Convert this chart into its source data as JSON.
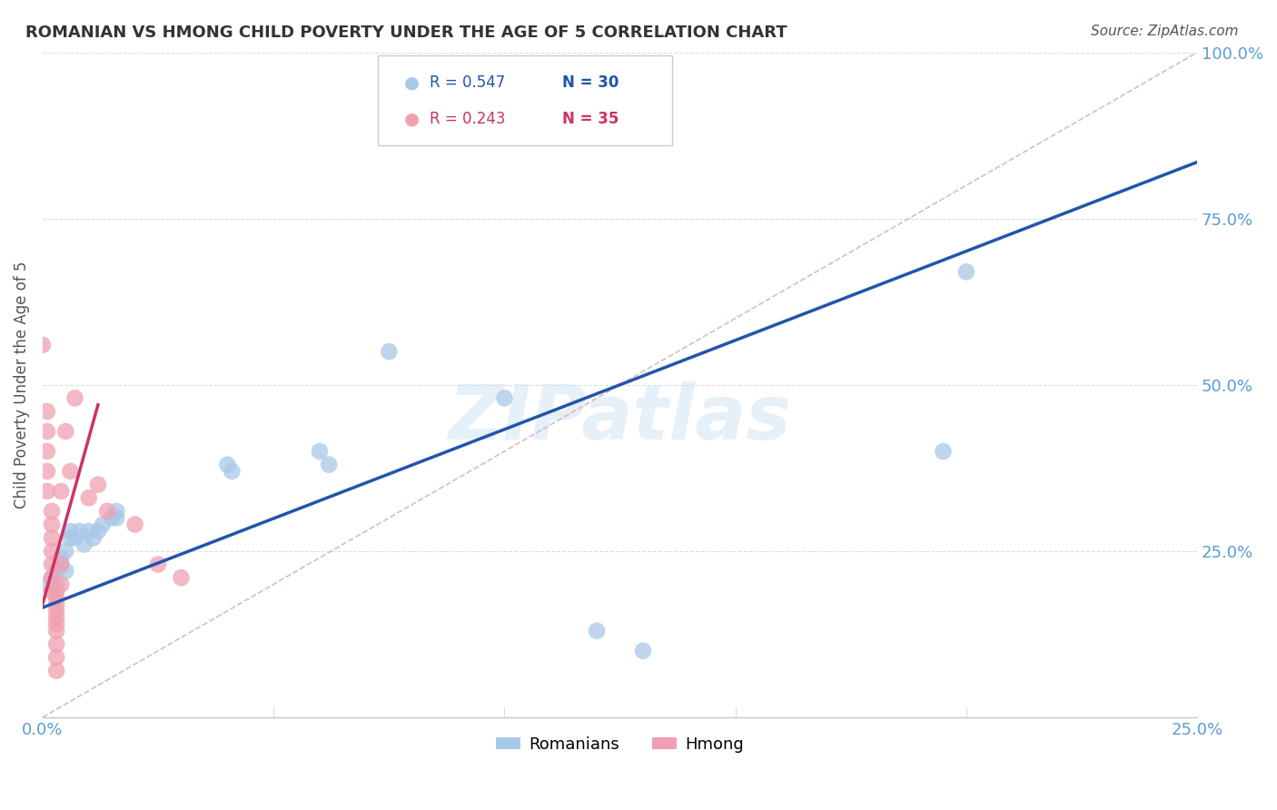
{
  "title": "ROMANIAN VS HMONG CHILD POVERTY UNDER THE AGE OF 5 CORRELATION CHART",
  "source": "Source: ZipAtlas.com",
  "tick_color": "#5b9bd5",
  "ylabel": "Child Poverty Under the Age of 5",
  "xlim": [
    0.0,
    0.25
  ],
  "ylim": [
    0.0,
    1.0
  ],
  "xticks": [
    0.0,
    0.05,
    0.1,
    0.15,
    0.2,
    0.25
  ],
  "yticks": [
    0.0,
    0.25,
    0.5,
    0.75,
    1.0
  ],
  "xtick_labels_show": [
    "0.0%",
    "",
    "",
    "",
    "",
    "25.0%"
  ],
  "ytick_labels": [
    "",
    "25.0%",
    "50.0%",
    "75.0%",
    "100.0%"
  ],
  "grid_color": "#dddddd",
  "background_color": "#ffffff",
  "watermark": "ZIPatlas",
  "legend_R1": "R = 0.547",
  "legend_N1": "N = 30",
  "legend_R2": "R = 0.243",
  "legend_N2": "N = 35",
  "romanian_color": "#a8c8e8",
  "hmong_color": "#f0a0b0",
  "romanian_line_color": "#2255aa",
  "hmong_line_color": "#cc3366",
  "diagonal_color": "#ddbbbb",
  "romanian_scatter": [
    [
      0.001,
      0.2
    ],
    [
      0.002,
      0.21
    ],
    [
      0.003,
      0.22
    ],
    [
      0.003,
      0.2
    ],
    [
      0.004,
      0.23
    ],
    [
      0.004,
      0.24
    ],
    [
      0.005,
      0.25
    ],
    [
      0.005,
      0.22
    ],
    [
      0.006,
      0.27
    ],
    [
      0.006,
      0.28
    ],
    [
      0.007,
      0.27
    ],
    [
      0.008,
      0.28
    ],
    [
      0.009,
      0.26
    ],
    [
      0.01,
      0.28
    ],
    [
      0.011,
      0.27
    ],
    [
      0.012,
      0.28
    ],
    [
      0.013,
      0.29
    ],
    [
      0.015,
      0.3
    ],
    [
      0.016,
      0.3
    ],
    [
      0.016,
      0.31
    ],
    [
      0.04,
      0.38
    ],
    [
      0.041,
      0.37
    ],
    [
      0.06,
      0.4
    ],
    [
      0.062,
      0.38
    ],
    [
      0.075,
      0.55
    ],
    [
      0.1,
      0.48
    ],
    [
      0.12,
      0.13
    ],
    [
      0.13,
      0.1
    ],
    [
      0.195,
      0.4
    ],
    [
      0.2,
      0.67
    ]
  ],
  "hmong_scatter": [
    [
      0.0,
      0.56
    ],
    [
      0.001,
      0.46
    ],
    [
      0.001,
      0.43
    ],
    [
      0.001,
      0.4
    ],
    [
      0.001,
      0.37
    ],
    [
      0.001,
      0.34
    ],
    [
      0.002,
      0.31
    ],
    [
      0.002,
      0.29
    ],
    [
      0.002,
      0.27
    ],
    [
      0.002,
      0.25
    ],
    [
      0.002,
      0.23
    ],
    [
      0.002,
      0.21
    ],
    [
      0.002,
      0.19
    ],
    [
      0.003,
      0.19
    ],
    [
      0.003,
      0.18
    ],
    [
      0.003,
      0.17
    ],
    [
      0.003,
      0.16
    ],
    [
      0.003,
      0.15
    ],
    [
      0.003,
      0.14
    ],
    [
      0.003,
      0.13
    ],
    [
      0.003,
      0.11
    ],
    [
      0.003,
      0.09
    ],
    [
      0.003,
      0.07
    ],
    [
      0.004,
      0.34
    ],
    [
      0.004,
      0.23
    ],
    [
      0.004,
      0.2
    ],
    [
      0.005,
      0.43
    ],
    [
      0.006,
      0.37
    ],
    [
      0.007,
      0.48
    ],
    [
      0.01,
      0.33
    ],
    [
      0.012,
      0.35
    ],
    [
      0.014,
      0.31
    ],
    [
      0.02,
      0.29
    ],
    [
      0.025,
      0.23
    ],
    [
      0.03,
      0.21
    ]
  ],
  "romanian_line_x": [
    0.0,
    0.25
  ],
  "romanian_line_y": [
    0.165,
    0.835
  ],
  "hmong_line_x": [
    0.0,
    0.012
  ],
  "hmong_line_y": [
    0.17,
    0.47
  ],
  "diagonal_line_x": [
    0.0,
    0.25
  ],
  "diagonal_line_y": [
    0.0,
    1.0
  ]
}
